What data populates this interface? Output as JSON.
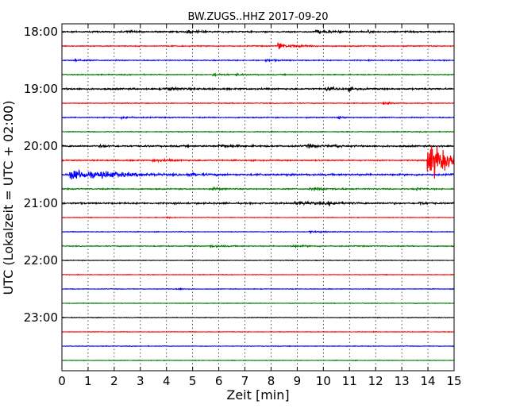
{
  "chart_data": {
    "type": "line",
    "title": "BW.ZUGS..HHZ 2017-09-20",
    "xlabel": "Zeit  [min]",
    "ylabel": "UTC (Lokalzeit = UTC + 02:00)",
    "xlim": [
      0,
      15
    ],
    "x_ticks": [
      "0",
      "1",
      "2",
      "3",
      "4",
      "5",
      "6",
      "7",
      "8",
      "9",
      "10",
      "11",
      "12",
      "13",
      "14",
      "15"
    ],
    "y_ticks": [
      "18:00",
      "19:00",
      "20:00",
      "21:00",
      "22:00",
      "23:00"
    ],
    "grid": "vertical dotted",
    "trace_colors": [
      "#000000",
      "#ff0000",
      "#0000ff",
      "#008000"
    ],
    "traces": [
      {
        "start": "18:00",
        "noise": 0.7,
        "events": [
          {
            "t": 2.5,
            "amp": 1.0,
            "w": 0.3
          },
          {
            "t": 4.8,
            "amp": 1.2,
            "w": 0.4
          },
          {
            "t": 9.7,
            "amp": 1.5,
            "w": 0.6
          },
          {
            "t": 11.7,
            "amp": 1.0,
            "w": 0.2
          }
        ]
      },
      {
        "start": "18:15",
        "noise": 0.5,
        "events": [
          {
            "t": 8.3,
            "amp": 5.0,
            "w": 0.15
          },
          {
            "t": 8.7,
            "amp": 1.2,
            "w": 0.6
          }
        ]
      },
      {
        "start": "18:30",
        "noise": 0.5,
        "events": [
          {
            "t": 0.5,
            "amp": 1.3,
            "w": 0.3
          },
          {
            "t": 7.8,
            "amp": 1.0,
            "w": 0.4
          }
        ]
      },
      {
        "start": "18:45",
        "noise": 0.5,
        "events": [
          {
            "t": 5.8,
            "amp": 1.3,
            "w": 0.4
          },
          {
            "t": 6.7,
            "amp": 1.0,
            "w": 0.2
          }
        ]
      },
      {
        "start": "19:00",
        "noise": 0.8,
        "events": [
          {
            "t": 10.1,
            "amp": 1.8,
            "w": 0.3
          },
          {
            "t": 11.0,
            "amp": 1.5,
            "w": 0.2
          },
          {
            "t": 4.0,
            "amp": 1.2,
            "w": 0.5
          }
        ]
      },
      {
        "start": "19:15",
        "noise": 0.4,
        "events": [
          {
            "t": 12.3,
            "amp": 1.0,
            "w": 0.3
          }
        ]
      },
      {
        "start": "19:30",
        "noise": 0.5,
        "events": [
          {
            "t": 10.6,
            "amp": 1.5,
            "w": 0.15
          },
          {
            "t": 2.3,
            "amp": 1.0,
            "w": 0.4
          }
        ]
      },
      {
        "start": "19:45",
        "noise": 0.4,
        "events": []
      },
      {
        "start": "20:00",
        "noise": 0.8,
        "events": [
          {
            "t": 6.0,
            "amp": 1.3,
            "w": 0.5
          },
          {
            "t": 9.4,
            "amp": 1.6,
            "w": 0.4
          },
          {
            "t": 10.4,
            "amp": 1.5,
            "w": 0.2
          },
          {
            "t": 1.5,
            "amp": 1.0,
            "w": 0.4
          }
        ]
      },
      {
        "start": "20:15",
        "noise": 0.6,
        "events": [
          {
            "t": 3.5,
            "amp": 1.0,
            "w": 0.8
          },
          {
            "t": 14.0,
            "amp": 22.0,
            "w": 0.8
          }
        ]
      },
      {
        "start": "20:30",
        "noise": 0.9,
        "events": [
          {
            "t": 0.3,
            "amp": 7.0,
            "w": 0.8
          },
          {
            "t": 1.5,
            "amp": 2.5,
            "w": 1.0
          },
          {
            "t": 4.8,
            "amp": 1.2,
            "w": 0.5
          }
        ]
      },
      {
        "start": "20:45",
        "noise": 0.6,
        "events": [
          {
            "t": 5.8,
            "amp": 1.3,
            "w": 0.3
          },
          {
            "t": 13.6,
            "amp": 1.3,
            "w": 0.2
          },
          {
            "t": 9.5,
            "amp": 1.0,
            "w": 0.8
          }
        ]
      },
      {
        "start": "21:00",
        "noise": 0.8,
        "events": [
          {
            "t": 8.9,
            "amp": 1.6,
            "w": 0.8
          },
          {
            "t": 10.2,
            "amp": 1.6,
            "w": 0.4
          },
          {
            "t": 13.7,
            "amp": 1.4,
            "w": 0.2
          }
        ]
      },
      {
        "start": "21:15",
        "noise": 0.3,
        "events": [
          {
            "t": 4.0,
            "amp": 1.0,
            "w": 0.1
          }
        ]
      },
      {
        "start": "21:30",
        "noise": 0.3,
        "events": [
          {
            "t": 9.5,
            "amp": 0.9,
            "w": 0.5
          }
        ]
      },
      {
        "start": "21:45",
        "noise": 0.5,
        "events": [
          {
            "t": 5.7,
            "amp": 1.2,
            "w": 0.4
          },
          {
            "t": 8.8,
            "amp": 0.8,
            "w": 0.6
          }
        ]
      },
      {
        "start": "22:00",
        "noise": 0.3,
        "events": []
      },
      {
        "start": "22:15",
        "noise": 0.3,
        "events": []
      },
      {
        "start": "22:30",
        "noise": 0.3,
        "events": [
          {
            "t": 4.4,
            "amp": 0.8,
            "w": 0.3
          }
        ]
      },
      {
        "start": "22:45",
        "noise": 0.3,
        "events": []
      },
      {
        "start": "23:00",
        "noise": 0.3,
        "events": []
      },
      {
        "start": "23:15",
        "noise": 0.3,
        "events": []
      },
      {
        "start": "23:30",
        "noise": 0.3,
        "events": []
      },
      {
        "start": "23:45",
        "noise": 0.3,
        "events": []
      }
    ]
  }
}
